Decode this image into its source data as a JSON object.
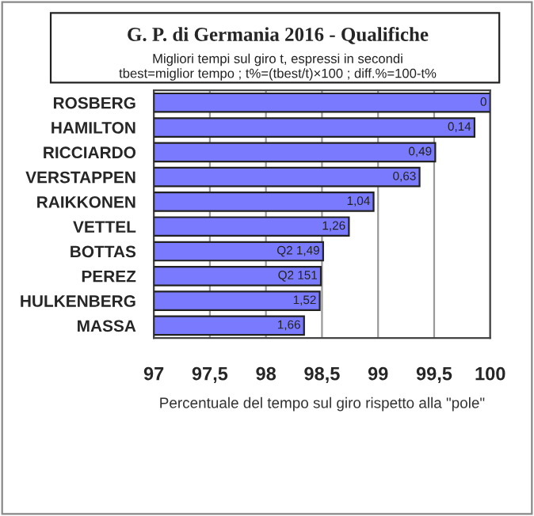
{
  "chart_data": {
    "type": "bar",
    "orientation": "horizontal",
    "title": "G. P. di Germania 2016 - Qualifiche",
    "subtitle": "Migliori tempi sul giro t, espressi in secondi\ntbest=miglior tempo ; t%=(tbest/t)×100 ; diff.%=100-t%",
    "xlabel": "Percentuale del tempo sul giro rispetto alla \"pole\"",
    "categories": [
      "ROSBERG",
      "HAMILTON",
      "RICCIARDO",
      "VERSTAPPEN",
      "RAIKKONEN",
      "VETTEL",
      "BOTTAS",
      "PEREZ",
      "HULKENBERG",
      "MASSA"
    ],
    "values": [
      100,
      99.86,
      99.51,
      99.37,
      98.96,
      98.74,
      98.51,
      98.49,
      98.48,
      98.34
    ],
    "annotations": [
      {
        "text": "0",
        "x": 100,
        "y": "ROSBERG"
      },
      {
        "text": "0,14",
        "x": 99.86,
        "y": "HAMILTON"
      },
      {
        "text": "0,49",
        "x": 99.51,
        "y": "RICCIARDO"
      },
      {
        "text": "0,63",
        "x": 99.37,
        "y": "VERSTAPPEN"
      },
      {
        "text": "1,04",
        "x": 98.96,
        "y": "RAIKKONEN"
      },
      {
        "text": "1,26",
        "x": 98.74,
        "y": "VETTEL"
      },
      {
        "text": "Q2 1,49",
        "x": 98.51,
        "y": "BOTTAS"
      },
      {
        "text": "Q2 151",
        "x": 98.49,
        "y": "PEREZ"
      },
      {
        "text": "1,52",
        "x": 98.48,
        "y": "HULKENBERG"
      },
      {
        "text": "1,66",
        "x": 98.34,
        "y": "MASSA"
      }
    ],
    "color": "#7a7aff",
    "xlim": [
      97,
      100
    ],
    "xticks": [
      97,
      {
        "value": 97.5,
        "label": "97,5"
      },
      98,
      {
        "value": 98.5,
        "label": "98,5"
      },
      99,
      {
        "value": 99.5,
        "label": "99,5"
      },
      100
    ],
    "grid": "x"
  }
}
